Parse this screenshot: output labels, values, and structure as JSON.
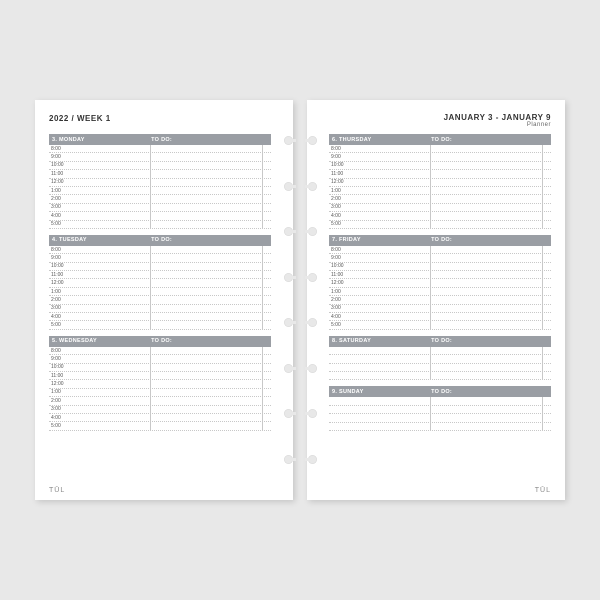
{
  "colors": {
    "page": "#ffffff",
    "bg": "#e8e8e8",
    "bar": "#9a9ea4",
    "line": "#c8c8c8",
    "text": "#333333",
    "muted": "#888888"
  },
  "left": {
    "title": "2022 / WEEK 1",
    "days": [
      {
        "label": "3. MONDAY",
        "times": [
          "8:00",
          "9:00",
          "10:00",
          "11:00",
          "12:00",
          "1:00",
          "2:00",
          "3:00",
          "4:00",
          "5:00"
        ]
      },
      {
        "label": "4. TUESDAY",
        "times": [
          "8:00",
          "9:00",
          "10:00",
          "11:00",
          "12:00",
          "1:00",
          "2:00",
          "3:00",
          "4:00",
          "5:00"
        ]
      },
      {
        "label": "5. WEDNESDAY",
        "times": [
          "8:00",
          "9:00",
          "10:00",
          "11:00",
          "12:00",
          "1:00",
          "2:00",
          "3:00",
          "4:00",
          "5:00"
        ]
      }
    ]
  },
  "right": {
    "title": "JANUARY 3 - JANUARY 9",
    "sub": "Planner",
    "days": [
      {
        "label": "6. THURSDAY",
        "times": [
          "8:00",
          "9:00",
          "10:00",
          "11:00",
          "12:00",
          "1:00",
          "2:00",
          "3:00",
          "4:00",
          "5:00"
        ]
      },
      {
        "label": "7. FRIDAY",
        "times": [
          "8:00",
          "9:00",
          "10:00",
          "11:00",
          "12:00",
          "1:00",
          "2:00",
          "3:00",
          "4:00",
          "5:00"
        ]
      },
      {
        "label": "8. SATURDAY",
        "times": [
          "",
          "",
          "",
          ""
        ]
      },
      {
        "label": "9. SUNDAY",
        "times": [
          "",
          "",
          "",
          ""
        ]
      }
    ]
  },
  "todo_label": "TO DO:",
  "brand": "TŪL"
}
